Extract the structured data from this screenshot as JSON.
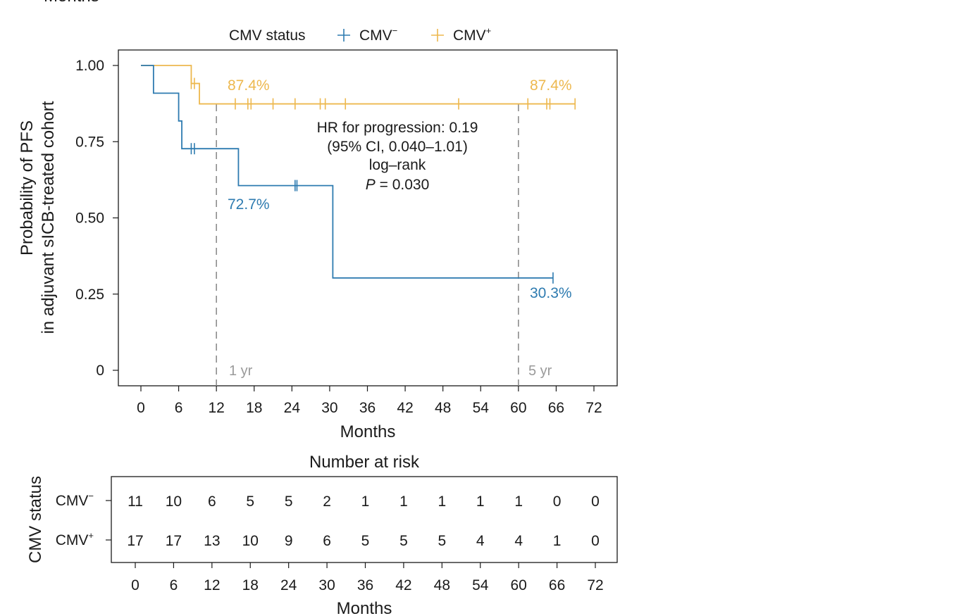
{
  "colors": {
    "cmv_neg": "#2e7bb0",
    "cmv_pos": "#edb84e",
    "ref_line": "#8c8c8c",
    "axis": "#1a1a1a"
  },
  "top_fragment": "Months",
  "legend": {
    "title": "CMV status",
    "neg_label": "CMV",
    "neg_sup": "−",
    "pos_label": "CMV",
    "pos_sup": "+"
  },
  "y_label_line1": "Probability of PFS",
  "y_label_line2": "in adjuvant sICB-treated cohort",
  "annotation": {
    "line1": "HR for progression: 0.19",
    "line2": "(95% CI, 0.040–1.01)",
    "line3": "log–rank",
    "p_italic": "P",
    "p_rest": " = 0.030"
  },
  "ref_labels": {
    "one_yr": "1 yr",
    "five_yr": "5 yr"
  },
  "pct_labels": {
    "pos_1yr": "87.4%",
    "pos_5yr": "87.4%",
    "neg_1yr": "72.7%",
    "neg_5yr": "30.3%"
  },
  "chart_data": {
    "type": "line",
    "subtype": "kaplan-meier",
    "xlabel": "Months",
    "ylabel": "Probability of PFS in adjuvant sICB-treated cohort",
    "xlim": [
      -3,
      75
    ],
    "ylim": [
      -0.05,
      1.05
    ],
    "x_ticks": [
      0,
      6,
      12,
      18,
      24,
      30,
      36,
      42,
      48,
      54,
      60,
      66,
      72
    ],
    "y_ticks": [
      0,
      0.25,
      0.5,
      0.75,
      1.0
    ],
    "y_tick_labels": [
      "0",
      "0.25",
      "0.50",
      "0.75",
      "1.00"
    ],
    "reference_lines_x": [
      12,
      60
    ],
    "series": [
      {
        "name": "CMV−",
        "color": "#2e7bb0",
        "steps": [
          [
            0,
            1.0
          ],
          [
            2,
            0.909
          ],
          [
            6,
            0.818
          ],
          [
            6.5,
            0.727
          ],
          [
            15.5,
            0.606
          ],
          [
            30.5,
            0.303
          ],
          [
            65.5,
            0.303
          ]
        ],
        "censor_x": [
          8,
          8.5,
          24.5,
          24.8,
          65.5
        ]
      },
      {
        "name": "CMV+",
        "color": "#edb84e",
        "steps": [
          [
            0,
            1.0
          ],
          [
            8,
            0.941
          ],
          [
            9.3,
            0.874
          ],
          [
            69,
            0.874
          ]
        ],
        "censor_x": [
          8,
          8.5,
          15,
          17,
          17.5,
          21,
          24.5,
          28.5,
          29.3,
          32.5,
          50.5,
          61.5,
          64.5,
          65,
          69
        ]
      }
    ]
  },
  "risk_table": {
    "title": "Number at risk",
    "ylabel": "CMV status",
    "xlabel": "Months",
    "times": [
      0,
      6,
      12,
      18,
      24,
      30,
      36,
      42,
      48,
      54,
      60,
      66,
      72
    ],
    "rows": [
      {
        "label": "CMV",
        "sup": "−",
        "counts": [
          11,
          10,
          6,
          5,
          5,
          2,
          1,
          1,
          1,
          1,
          1,
          0,
          0
        ]
      },
      {
        "label": "CMV",
        "sup": "+",
        "counts": [
          17,
          17,
          13,
          10,
          9,
          6,
          5,
          5,
          5,
          4,
          4,
          1,
          0
        ]
      }
    ]
  }
}
